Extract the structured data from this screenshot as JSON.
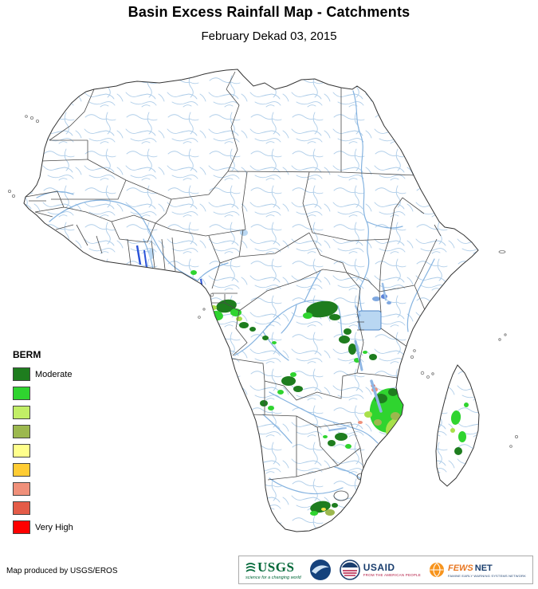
{
  "header": {
    "title": "Basin Excess Rainfall Map - Catchments",
    "subtitle": "February Dekad 03, 2015"
  },
  "legend": {
    "title": "BERM",
    "items": [
      {
        "color": "#1e7d1e",
        "label": "Moderate"
      },
      {
        "color": "#2fd42f",
        "label": ""
      },
      {
        "color": "#c2ee66",
        "label": ""
      },
      {
        "color": "#9cb84e",
        "label": ""
      },
      {
        "color": "#ffff8c",
        "label": ""
      },
      {
        "color": "#ffcc33",
        "label": ""
      },
      {
        "color": "#f0907a",
        "label": ""
      },
      {
        "color": "#e45c48",
        "label": ""
      },
      {
        "color": "#fe0000",
        "label": "Very High"
      }
    ]
  },
  "footer": {
    "credit": "Map produced by USGS/EROS"
  },
  "logos": {
    "usgs": {
      "name": "USGS",
      "tagline": "science for a changing world"
    },
    "noaa": {
      "name": "NOAA"
    },
    "usaid": {
      "name": "USAID",
      "tagline": "FROM THE AMERICAN PEOPLE"
    },
    "fewsnet": {
      "name_left": "FEWS",
      "name_right": "NET",
      "tagline": "FAMINE EARLY WARNING SYSTEMS NETWORK"
    }
  }
}
